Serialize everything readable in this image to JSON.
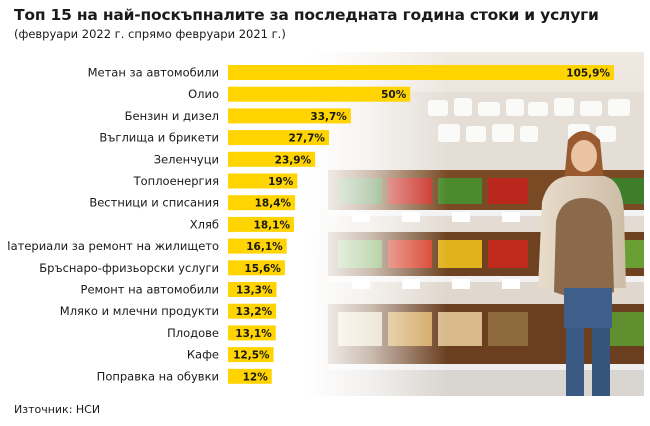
{
  "header": {
    "title": "Топ 15 на най-поскъпналите за последната година стоки и услуги",
    "subtitle": "(февруари 2022 г. спрямо февруари 2021 г.)"
  },
  "footer": {
    "source": "Източник: НСИ"
  },
  "colors": {
    "bar": "#ffd400",
    "text": "#1a1a1a",
    "background": "#ffffff"
  },
  "chart_data": {
    "type": "bar",
    "orientation": "horizontal",
    "categories": [
      "Метан за автомобили",
      "Олио",
      "Бензин и дизел",
      "Въглища и брикети",
      "Зеленчуци",
      "Топлоенергия",
      "Вестници и списания",
      "Хляб",
      "Материали за ремонт на жилището",
      "Бръснаро-фризьорски услуги",
      "Ремонт на автомобили",
      "Мляко и млечни продукти",
      "Плодове",
      "Кафе",
      "Поправка на обувки"
    ],
    "values": [
      105.9,
      50,
      33.7,
      27.7,
      23.9,
      19,
      18.4,
      18.1,
      16.1,
      15.6,
      13.3,
      13.2,
      13.1,
      12.5,
      12
    ],
    "value_labels": [
      "105,9%",
      "50%",
      "33,7%",
      "27,7%",
      "23,9%",
      "19%",
      "18,4%",
      "18,1%",
      "16,1%",
      "15,6%",
      "13,3%",
      "13,2%",
      "13,1%",
      "12,5%",
      "12%"
    ],
    "xlim": [
      0,
      105.9
    ],
    "grid": false,
    "legend": "none"
  }
}
